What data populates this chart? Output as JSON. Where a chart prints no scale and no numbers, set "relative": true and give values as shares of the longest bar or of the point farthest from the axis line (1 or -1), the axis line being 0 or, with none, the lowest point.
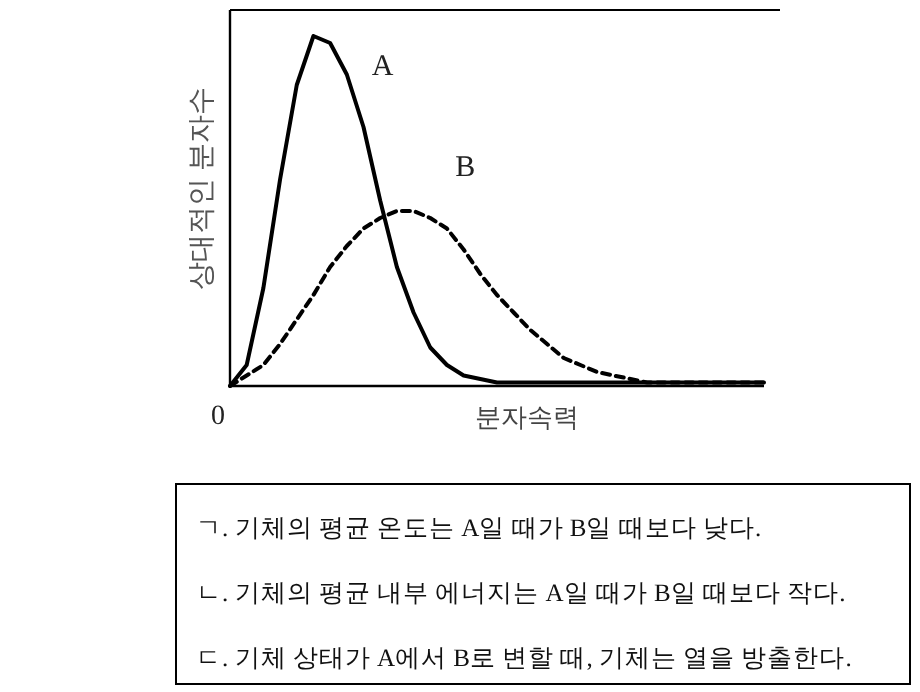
{
  "chart_data": {
    "type": "line",
    "relative": true,
    "xlabel": "분자속력",
    "ylabel": "상대적인 분자수",
    "categories": [
      null,
      null,
      null,
      null,
      null,
      null,
      null,
      null,
      null,
      null,
      null,
      null,
      null,
      null,
      null,
      null,
      null,
      null,
      null,
      null,
      null,
      null,
      null,
      null,
      null,
      null,
      null,
      null,
      null,
      null,
      null,
      null,
      null
    ],
    "series": [
      {
        "name": "A",
        "color": "#000000",
        "line_style": "solid",
        "values": [
          0,
          0.06,
          0.28,
          0.59,
          0.86,
          1,
          0.98,
          0.89,
          0.74,
          0.53,
          0.34,
          0.21,
          0.11,
          0.06,
          0.03,
          0.02,
          0.01,
          0.01,
          0.01,
          0.01,
          0.01,
          0.01,
          0.01,
          0.01,
          0.01,
          0.01,
          0.01,
          0.01,
          0.01,
          0.01,
          0.01,
          0.01,
          0.01
        ]
      },
      {
        "name": "B",
        "color": "#000000",
        "line_style": "dashed",
        "values": [
          0,
          0.03,
          0.06,
          0.12,
          0.19,
          0.26,
          0.34,
          0.4,
          0.45,
          0.48,
          0.5,
          0.5,
          0.48,
          0.45,
          0.39,
          0.32,
          0.26,
          0.21,
          0.16,
          0.12,
          0.08,
          0.06,
          0.04,
          0.03,
          0.02,
          0.01,
          0.01,
          0.01,
          0.01,
          0.01,
          0.01,
          0.01,
          0.01
        ]
      }
    ],
    "annotations": [
      "0",
      "ㄱ. 기체의 평균 온도는 A일 때가 B일 때보다 낮다.",
      "ㄴ. 기체의 평균 내부 에너지는 A일 때가 B일 때보다 작다.",
      "ㄷ. 기체 상태가 A에서 B로 변할 때, 기체는 열을 방출한다."
    ],
    "grid": false
  }
}
